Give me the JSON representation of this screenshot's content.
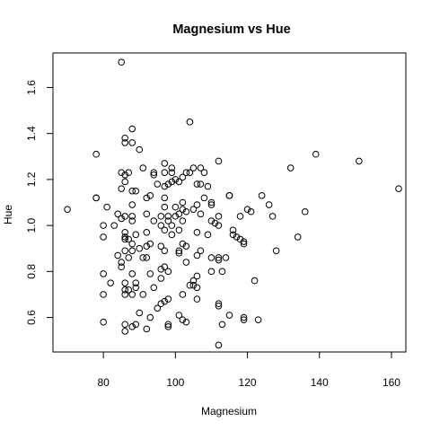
{
  "chart_data": {
    "type": "scatter",
    "title": "Magnesium vs Hue",
    "xlabel": "Magnesium",
    "ylabel": "Hue",
    "xlim": [
      66,
      164
    ],
    "ylim": [
      0.45,
      1.75
    ],
    "x_ticks": [
      80,
      100,
      120,
      140,
      160
    ],
    "y_ticks": [
      0.6,
      0.8,
      1.0,
      1.2,
      1.4,
      1.6
    ],
    "x_tick_labels": [
      "80",
      "100",
      "120",
      "140",
      "160"
    ],
    "y_tick_labels": [
      "0.6",
      "0.8",
      "1.0",
      "1.2",
      "1.4",
      "1.6"
    ],
    "grid": false,
    "legend": "none",
    "points": [
      [
        85,
        1.71
      ],
      [
        104,
        1.45
      ],
      [
        88,
        1.42
      ],
      [
        86,
        1.38
      ],
      [
        86,
        1.36
      ],
      [
        88,
        1.36
      ],
      [
        90,
        1.33
      ],
      [
        78,
        1.31
      ],
      [
        139,
        1.31
      ],
      [
        112,
        1.28
      ],
      [
        151,
        1.28
      ],
      [
        97,
        1.27
      ],
      [
        91,
        1.25
      ],
      [
        99,
        1.25
      ],
      [
        105,
        1.25
      ],
      [
        107,
        1.25
      ],
      [
        132,
        1.25
      ],
      [
        85,
        1.23
      ],
      [
        87,
        1.23
      ],
      [
        94,
        1.23
      ],
      [
        97,
        1.23
      ],
      [
        99,
        1.23
      ],
      [
        103,
        1.23
      ],
      [
        104,
        1.23
      ],
      [
        86,
        1.22
      ],
      [
        108,
        1.23
      ],
      [
        94,
        1.22
      ],
      [
        102,
        1.21
      ],
      [
        101,
        1.19
      ],
      [
        86,
        1.19
      ],
      [
        100,
        1.2
      ],
      [
        95,
        1.18
      ],
      [
        99,
        1.19
      ],
      [
        98,
        1.18
      ],
      [
        106,
        1.18
      ],
      [
        107,
        1.18
      ],
      [
        97,
        1.17
      ],
      [
        109,
        1.17
      ],
      [
        85,
        1.16
      ],
      [
        88,
        1.15
      ],
      [
        89,
        1.15
      ],
      [
        162,
        1.16
      ],
      [
        93,
        1.13
      ],
      [
        115,
        1.13
      ],
      [
        115,
        1.13
      ],
      [
        124,
        1.13
      ],
      [
        78,
        1.12
      ],
      [
        78,
        1.12
      ],
      [
        92,
        1.12
      ],
      [
        97,
        1.12
      ],
      [
        108,
        1.12
      ],
      [
        102,
        1.1
      ],
      [
        110,
        1.1
      ],
      [
        110,
        1.09
      ],
      [
        106,
        1.09
      ],
      [
        88,
        1.09
      ],
      [
        126,
        1.09
      ],
      [
        97,
        1.08
      ],
      [
        81,
        1.08
      ],
      [
        100,
        1.08
      ],
      [
        105,
        1.07
      ],
      [
        102,
        1.07
      ],
      [
        120,
        1.07
      ],
      [
        70,
        1.07
      ],
      [
        103,
        1.06
      ],
      [
        121,
        1.06
      ],
      [
        136,
        1.06
      ],
      [
        84,
        1.05
      ],
      [
        92,
        1.05
      ],
      [
        101,
        1.05
      ],
      [
        107,
        1.05
      ],
      [
        88,
        1.04
      ],
      [
        96,
        1.04
      ],
      [
        100,
        1.04
      ],
      [
        98,
        1.04
      ],
      [
        112,
        1.04
      ],
      [
        118,
        1.04
      ],
      [
        127,
        1.04
      ],
      [
        86,
        1.04
      ],
      [
        85,
        1.03
      ],
      [
        88,
        1.02
      ],
      [
        98,
        1.02
      ],
      [
        94,
        1.02
      ],
      [
        102,
        1.02
      ],
      [
        110,
        1.02
      ],
      [
        111,
        1.01
      ],
      [
        96,
        1.0
      ],
      [
        80,
        1.0
      ],
      [
        83,
        1.0
      ],
      [
        99,
        1.0
      ],
      [
        112,
        1.0
      ],
      [
        116,
        0.98
      ],
      [
        101,
        0.98
      ],
      [
        97,
        0.98
      ],
      [
        106,
        0.97
      ],
      [
        86,
        0.97
      ],
      [
        89,
        0.96
      ],
      [
        92,
        0.97
      ],
      [
        99,
        0.96
      ],
      [
        109,
        0.96
      ],
      [
        116,
        0.96
      ],
      [
        80,
        0.95
      ],
      [
        117,
        0.95
      ],
      [
        86,
        0.95
      ],
      [
        134,
        0.95
      ],
      [
        87,
        0.94
      ],
      [
        86,
        0.94
      ],
      [
        118,
        0.94
      ],
      [
        119,
        0.93
      ],
      [
        88,
        0.92
      ],
      [
        93,
        0.92
      ],
      [
        102,
        0.92
      ],
      [
        119,
        0.92
      ],
      [
        92,
        0.91
      ],
      [
        103,
        0.91
      ],
      [
        96,
        0.91
      ],
      [
        90,
        0.9
      ],
      [
        101,
        0.89
      ],
      [
        86,
        0.89
      ],
      [
        88,
        0.89
      ],
      [
        97,
        0.89
      ],
      [
        107,
        0.89
      ],
      [
        128,
        0.89
      ],
      [
        101,
        0.88
      ],
      [
        106,
        0.87
      ],
      [
        84,
        0.87
      ],
      [
        87,
        0.86
      ],
      [
        91,
        0.86
      ],
      [
        92,
        0.86
      ],
      [
        112,
        0.86
      ],
      [
        114,
        0.86
      ],
      [
        110,
        0.86
      ],
      [
        112,
        0.85
      ],
      [
        103,
        0.84
      ],
      [
        85,
        0.84
      ],
      [
        85,
        0.82
      ],
      [
        97,
        0.82
      ],
      [
        96,
        0.81
      ],
      [
        98,
        0.8
      ],
      [
        110,
        0.8
      ],
      [
        113,
        0.8
      ],
      [
        80,
        0.79
      ],
      [
        88,
        0.79
      ],
      [
        93,
        0.79
      ],
      [
        106,
        0.78
      ],
      [
        96,
        0.77
      ],
      [
        105,
        0.76
      ],
      [
        86,
        0.75
      ],
      [
        89,
        0.75
      ],
      [
        122,
        0.76
      ],
      [
        82,
        0.75
      ],
      [
        105,
        0.74
      ],
      [
        104,
        0.74
      ],
      [
        89,
        0.73
      ],
      [
        94,
        0.73
      ],
      [
        87,
        0.72
      ],
      [
        86,
        0.72
      ],
      [
        106,
        0.73
      ],
      [
        88,
        0.7
      ],
      [
        91,
        0.7
      ],
      [
        102,
        0.7
      ],
      [
        86,
        0.7
      ],
      [
        80,
        0.7
      ],
      [
        98,
        0.68
      ],
      [
        106,
        0.68
      ],
      [
        97,
        0.67
      ],
      [
        112,
        0.66
      ],
      [
        96,
        0.66
      ],
      [
        112,
        0.65
      ],
      [
        95,
        0.64
      ],
      [
        90,
        0.62
      ],
      [
        115,
        0.61
      ],
      [
        101,
        0.61
      ],
      [
        93,
        0.6
      ],
      [
        119,
        0.6
      ],
      [
        119,
        0.59
      ],
      [
        123,
        0.59
      ],
      [
        102,
        0.59
      ],
      [
        103,
        0.58
      ],
      [
        80,
        0.58
      ],
      [
        86,
        0.57
      ],
      [
        98,
        0.57
      ],
      [
        113,
        0.57
      ],
      [
        89,
        0.57
      ],
      [
        88,
        0.56
      ],
      [
        98,
        0.56
      ],
      [
        92,
        0.55
      ],
      [
        86,
        0.54
      ],
      [
        112,
        0.48
      ]
    ]
  }
}
